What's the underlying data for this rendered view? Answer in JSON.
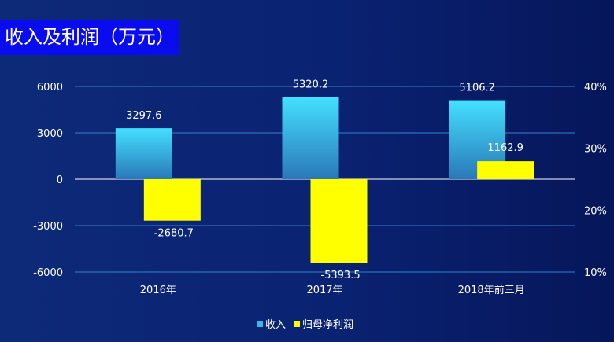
{
  "chart_data": {
    "type": "bar",
    "title": "收入及利润（万元）",
    "categories": [
      "2016年",
      "2017年",
      "2018年前三月"
    ],
    "series": [
      {
        "name": "收入",
        "values": [
          3297.6,
          5320.2,
          5106.2
        ],
        "labels": [
          "3297.6",
          "5320.2",
          "5106.2"
        ],
        "color": "#3fd6ff"
      },
      {
        "name": "归母净利润",
        "values": [
          -2680.7,
          -5393.5,
          1162.9
        ],
        "labels": [
          "-2680.7",
          "-5393.5",
          "1162.9"
        ],
        "color": "#ffff00"
      }
    ],
    "ylim": [
      -6000,
      6000
    ],
    "yticks": [
      "6000",
      "3000",
      "0",
      "-3000",
      "-6000"
    ],
    "y2lim": [
      10,
      40
    ],
    "y2ticks": [
      "40%",
      "30%",
      "20%",
      "10%"
    ],
    "grid": true,
    "legend_position": "bottom-center"
  }
}
